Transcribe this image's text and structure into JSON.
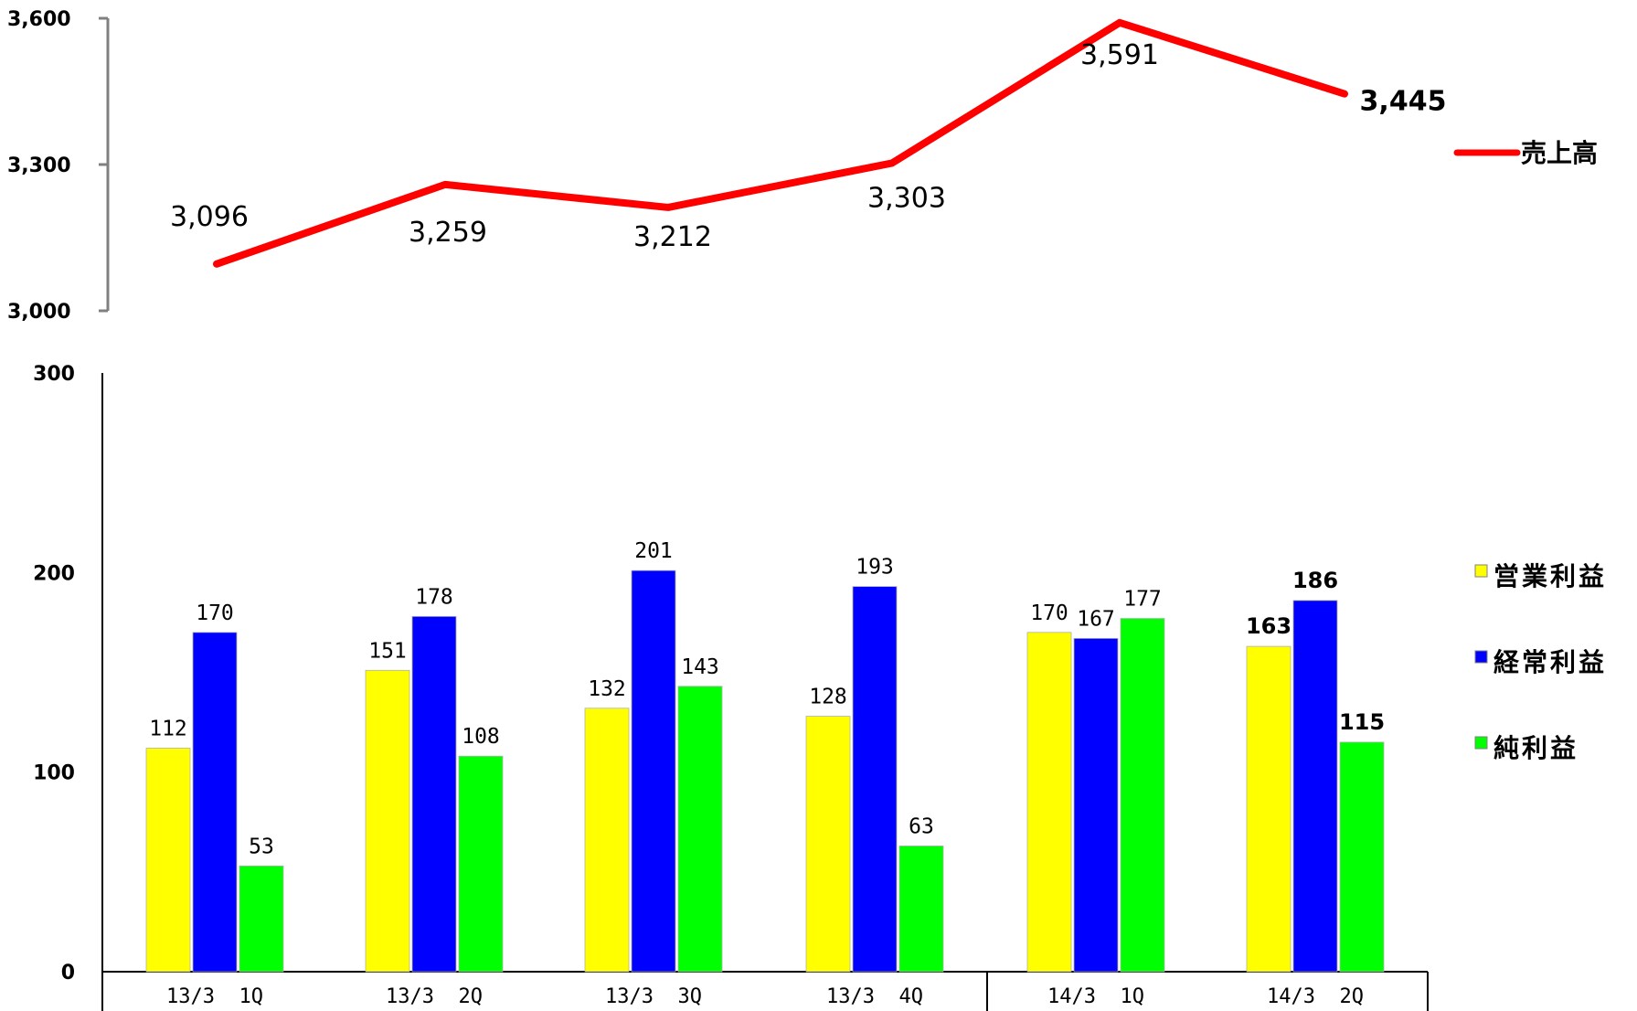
{
  "chart_data": [
    {
      "type": "line",
      "categories": [
        "13/3 1Q",
        "13/3 2Q",
        "13/3 3Q",
        "13/3 4Q",
        "14/3 1Q",
        "14/3 2Q"
      ],
      "series": [
        {
          "name": "売上高",
          "values": [
            3096,
            3259,
            3212,
            3303,
            3591,
            3445
          ],
          "color": "#ff0000"
        }
      ],
      "data_labels": [
        "3,096",
        "3,259",
        "3,212",
        "3,303",
        "3,591",
        "3,445"
      ],
      "ylim": [
        3000,
        3600
      ],
      "yticks": [
        3000,
        3300,
        3600
      ],
      "ytick_labels": [
        "3,000",
        "3,300",
        "3,600"
      ],
      "legend_placement": "right",
      "grid": false
    },
    {
      "type": "bar",
      "categories": [
        "13/3 1Q",
        "13/3 2Q",
        "13/3 3Q",
        "13/3 4Q",
        "14/3 1Q",
        "14/3 2Q"
      ],
      "category_labels": [
        "13/3  1Q",
        "13/3  2Q",
        "13/3  3Q",
        "13/3  4Q",
        "14/3  1Q",
        "14/3  2Q"
      ],
      "series": [
        {
          "name": "営業利益",
          "values": [
            112,
            151,
            132,
            128,
            170,
            163
          ],
          "color": "#ffff00"
        },
        {
          "name": "経常利益",
          "values": [
            170,
            178,
            201,
            193,
            167,
            186
          ],
          "color": "#0000ff"
        },
        {
          "name": "純利益",
          "values": [
            53,
            108,
            143,
            63,
            177,
            115
          ],
          "color": "#00ff00"
        }
      ],
      "ylim": [
        0,
        300
      ],
      "yticks": [
        0,
        100,
        200,
        300
      ],
      "ytick_labels": [
        "0",
        "100",
        "200",
        "300"
      ],
      "legend_placement": "right",
      "grid": false
    }
  ]
}
